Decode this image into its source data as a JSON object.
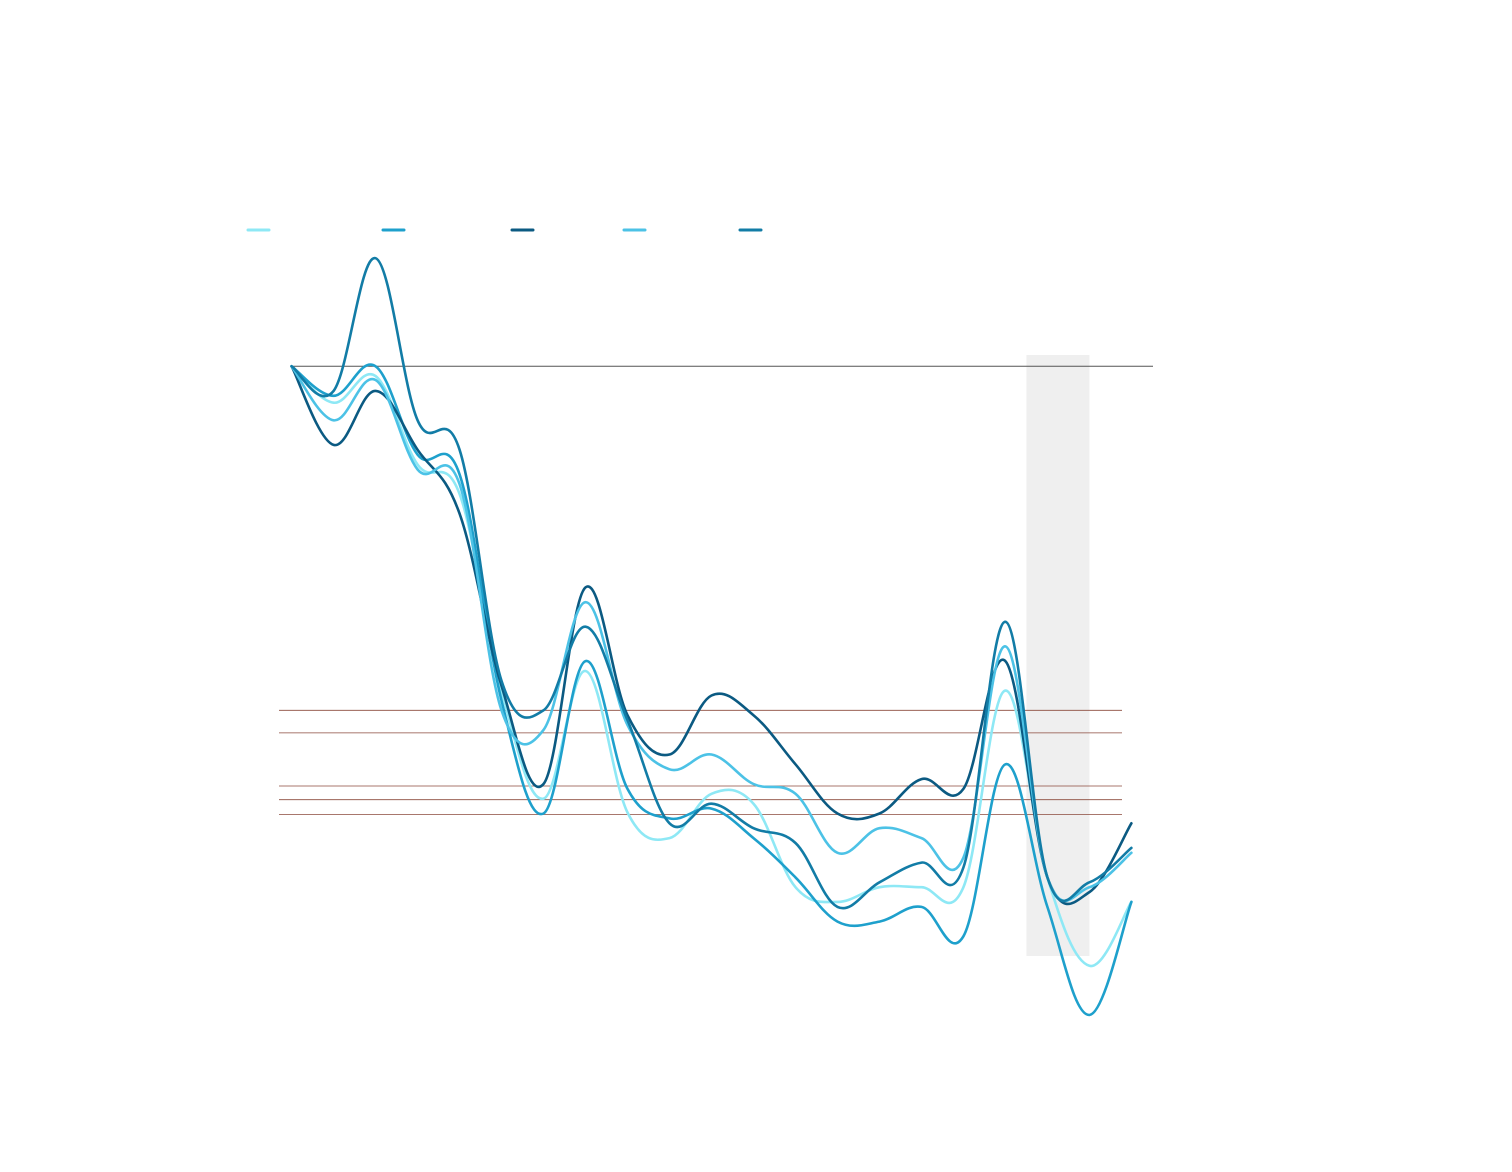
{
  "chart_data": {
    "type": "line",
    "title": "",
    "xlabel": "",
    "ylabel": "",
    "x": [
      0,
      1,
      2,
      3,
      4,
      5,
      6,
      7,
      8,
      9,
      10,
      11,
      12,
      13,
      14,
      15,
      16,
      17,
      18,
      19,
      20
    ],
    "xlim": [
      -0.3,
      20.3
    ],
    "ylim": [
      -60,
      10
    ],
    "grid": false,
    "legend_position": "top-left",
    "baseline_value": 0,
    "reference_lines": [
      -35,
      -37.3,
      -42.7,
      -44.1,
      -45.6
    ],
    "shaded_region": {
      "x_start": 17.5,
      "x_end": 19
    },
    "series": [
      {
        "name": "",
        "color": "#8ee8f5",
        "values": [
          0,
          -3.7,
          -1,
          -10,
          -13,
          -33,
          -44,
          -31,
          -45.4,
          -48,
          -43.5,
          -44.5,
          -53,
          -54.5,
          -53,
          -53,
          -53,
          -33,
          -52,
          -61,
          -54.5
        ]
      },
      {
        "name": "",
        "color": "#1ea0cc",
        "values": [
          0,
          -3,
          0,
          -9,
          -11,
          -34,
          -45.5,
          -30,
          -43,
          -46,
          -45,
          -48,
          -52,
          -56.5,
          -56.5,
          -55,
          -58,
          -40.5,
          -55,
          -66,
          -54.5
        ]
      },
      {
        "name": "",
        "color": "#0b5a82",
        "values": [
          0,
          -8,
          -2.5,
          -8.5,
          -15,
          -32.5,
          -42.5,
          -22.5,
          -35.5,
          -39.5,
          -33.5,
          -35.5,
          -40.5,
          -45.5,
          -45.5,
          -42,
          -43,
          -30,
          -52,
          -53.5,
          -46.5
        ]
      },
      {
        "name": "",
        "color": "#4cc2e6",
        "values": [
          0,
          -5.5,
          -1.4,
          -10.5,
          -12,
          -35,
          -37,
          -24,
          -36.5,
          -41,
          -39.5,
          -42.5,
          -43.5,
          -49.5,
          -47,
          -48,
          -50,
          -28.5,
          -52,
          -53,
          -49.5
        ]
      },
      {
        "name": "",
        "color": "#127ca6",
        "values": [
          0,
          -2.5,
          11,
          -5.5,
          -8.5,
          -32,
          -35,
          -26.5,
          -36,
          -46.5,
          -44.5,
          -47,
          -48.5,
          -55,
          -52.5,
          -50.5,
          -51,
          -26,
          -52,
          -52.5,
          -49
        ]
      }
    ]
  }
}
